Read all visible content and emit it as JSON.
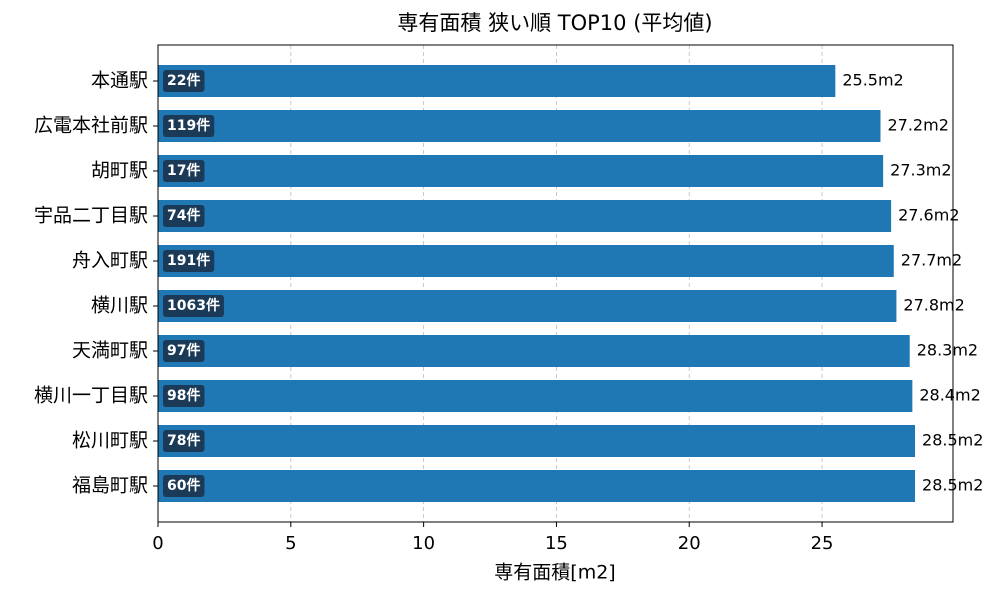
{
  "chart_data": {
    "type": "hbar",
    "title": "専有面積 狭い順 TOP10 (平均値)",
    "x_label": "専有面積[m2]",
    "categories": [
      "本通駅",
      "広電本社前駅",
      "胡町駅",
      "宇品二丁目駅",
      "舟入町駅",
      "横川駅",
      "天満町駅",
      "横川一丁目駅",
      "松川町駅",
      "福島町駅"
    ],
    "values": [
      25.5,
      27.2,
      27.3,
      27.6,
      27.7,
      27.8,
      28.3,
      28.4,
      28.5,
      28.5
    ],
    "value_labels": [
      "25.5m2",
      "27.2m2",
      "27.3m2",
      "27.6m2",
      "27.7m2",
      "27.8m2",
      "28.3m2",
      "28.4m2",
      "28.5m2",
      "28.5m2"
    ],
    "count_labels": [
      "22件",
      "119件",
      "17件",
      "74件",
      "191件",
      "1063件",
      "97件",
      "98件",
      "78件",
      "60件"
    ],
    "color": "#1f77b4",
    "xlim": [
      0,
      29.93
    ],
    "xticks": [
      0,
      5,
      10,
      15,
      20,
      25
    ],
    "grid": true
  }
}
